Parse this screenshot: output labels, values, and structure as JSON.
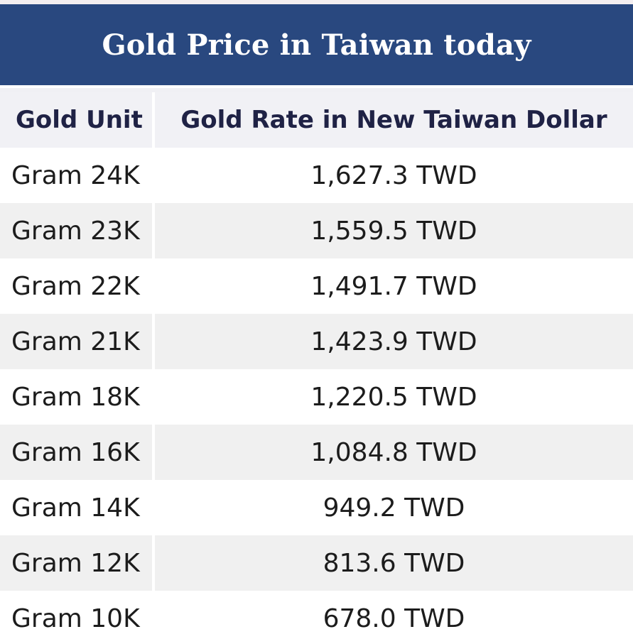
{
  "title": "Gold Price in Taiwan today",
  "table": {
    "headers": {
      "unit": "Gold Unit",
      "rate": "Gold Rate in New Taiwan Dollar"
    },
    "rows": [
      {
        "unit": "Gram 24K",
        "rate": "1,627.3 TWD"
      },
      {
        "unit": "Gram 23K",
        "rate": "1,559.5 TWD"
      },
      {
        "unit": "Gram 22K",
        "rate": "1,491.7 TWD"
      },
      {
        "unit": "Gram 21K",
        "rate": "1,423.9 TWD"
      },
      {
        "unit": "Gram 18K",
        "rate": "1,220.5 TWD"
      },
      {
        "unit": "Gram 16K",
        "rate": "1,084.8 TWD"
      },
      {
        "unit": "Gram 14K",
        "rate": "949.2 TWD"
      },
      {
        "unit": "Gram 12K",
        "rate": "813.6 TWD"
      },
      {
        "unit": "Gram 10K",
        "rate": "678.0 TWD"
      }
    ]
  },
  "colors": {
    "title_bar": "#29487f",
    "header_bg": "#f1f1f5",
    "row_alt_bg": "#f0f0f0"
  }
}
